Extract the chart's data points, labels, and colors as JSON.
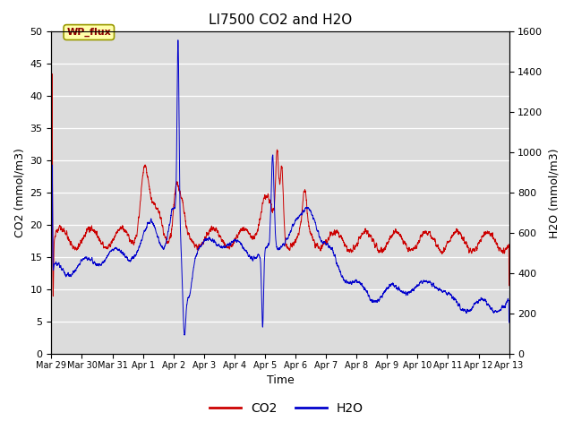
{
  "title": "LI7500 CO2 and H2O",
  "xlabel": "Time",
  "ylabel_left": "CO2 (mmol/m3)",
  "ylabel_right": "H2O (mmol/m3)",
  "ylim_left": [
    0,
    50
  ],
  "ylim_right": [
    0,
    1600
  ],
  "yticks_left": [
    0,
    5,
    10,
    15,
    20,
    25,
    30,
    35,
    40,
    45,
    50
  ],
  "yticks_right": [
    0,
    200,
    400,
    600,
    800,
    1000,
    1200,
    1400,
    1600
  ],
  "co2_color": "#cc0000",
  "h2o_color": "#0000cc",
  "background_color": "#dcdcdc",
  "annotation_text": "WP_flux",
  "x_tick_labels": [
    "Mar 29",
    "Mar 30",
    "Mar 31",
    "Apr 1",
    "Apr 2",
    "Apr 3",
    "Apr 4",
    "Apr 5",
    "Apr 6",
    "Apr 7",
    "Apr 8",
    "Apr 9",
    "Apr 10",
    "Apr 11",
    "Apr 12",
    "Apr 13"
  ],
  "num_days": 15,
  "title_fontsize": 11,
  "axis_label_fontsize": 9,
  "tick_fontsize": 8,
  "legend_fontsize": 10
}
